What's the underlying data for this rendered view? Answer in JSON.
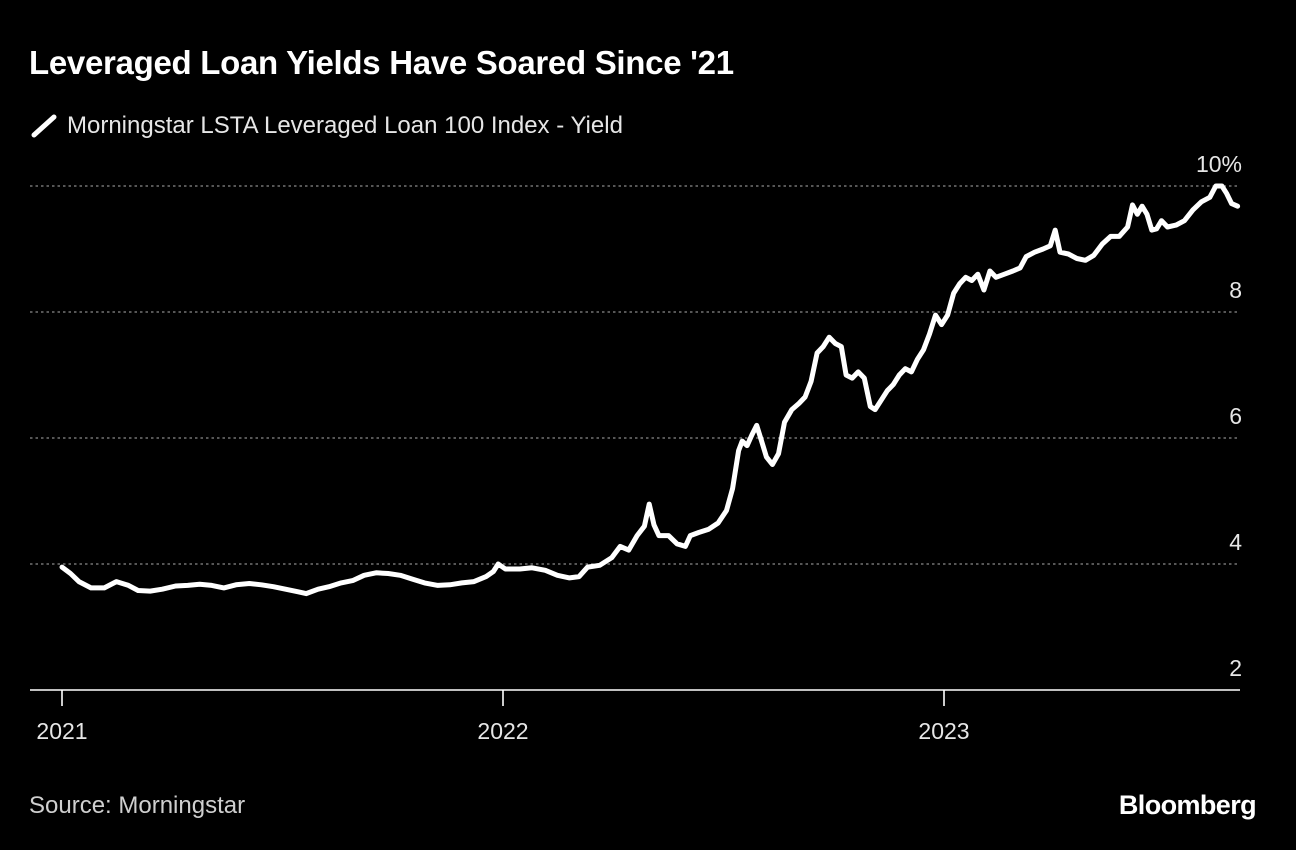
{
  "header": {
    "title": "Leveraged Loan Yields Have Soared Since '21"
  },
  "footer": {
    "source": "Source: Morningstar",
    "logo": "Bloomberg"
  },
  "colors": {
    "background": "#000000",
    "series": "#ffffff",
    "grid": "#8a8a8a",
    "axis_text": "#e6e6e6"
  },
  "chart_data": {
    "type": "line",
    "title": "Leveraged Loan Yields Have Soared Since '21",
    "legend_position": "top-left",
    "grid": true,
    "grid_style": "dotted horizontal",
    "y_axis_side": "right",
    "ylim": [
      2,
      10
    ],
    "y_ticks": [
      2,
      4,
      6,
      8,
      10
    ],
    "y_tick_labels": [
      "2",
      "4",
      "6",
      "8",
      "10%"
    ],
    "xlim": [
      "2021-01-01",
      "2023-09-30"
    ],
    "x_ticks": [
      "2021-01-01",
      "2022-01-01",
      "2023-01-01"
    ],
    "x_tick_labels": [
      "2021",
      "2022",
      "2023"
    ],
    "series": [
      {
        "name": "Morningstar LSTA Leveraged Loan 100 Index - Yield",
        "color": "#ffffff",
        "points": [
          [
            "2021-01-01",
            3.95
          ],
          [
            "2021-01-08",
            3.85
          ],
          [
            "2021-01-15",
            3.72
          ],
          [
            "2021-01-25",
            3.62
          ],
          [
            "2021-02-05",
            3.62
          ],
          [
            "2021-02-15",
            3.72
          ],
          [
            "2021-02-25",
            3.66
          ],
          [
            "2021-03-05",
            3.58
          ],
          [
            "2021-03-15",
            3.57
          ],
          [
            "2021-03-25",
            3.6
          ],
          [
            "2021-04-05",
            3.65
          ],
          [
            "2021-04-15",
            3.66
          ],
          [
            "2021-04-25",
            3.68
          ],
          [
            "2021-05-05",
            3.66
          ],
          [
            "2021-05-15",
            3.62
          ],
          [
            "2021-05-25",
            3.67
          ],
          [
            "2021-06-05",
            3.69
          ],
          [
            "2021-06-15",
            3.67
          ],
          [
            "2021-06-25",
            3.64
          ],
          [
            "2021-07-05",
            3.6
          ],
          [
            "2021-07-15",
            3.56
          ],
          [
            "2021-07-22",
            3.53
          ],
          [
            "2021-08-01",
            3.6
          ],
          [
            "2021-08-10",
            3.64
          ],
          [
            "2021-08-20",
            3.7
          ],
          [
            "2021-08-30",
            3.74
          ],
          [
            "2021-09-08",
            3.82
          ],
          [
            "2021-09-18",
            3.86
          ],
          [
            "2021-09-28",
            3.85
          ],
          [
            "2021-10-08",
            3.82
          ],
          [
            "2021-10-18",
            3.76
          ],
          [
            "2021-10-28",
            3.7
          ],
          [
            "2021-11-08",
            3.66
          ],
          [
            "2021-11-18",
            3.67
          ],
          [
            "2021-11-28",
            3.7
          ],
          [
            "2021-12-08",
            3.72
          ],
          [
            "2021-12-18",
            3.8
          ],
          [
            "2021-12-24",
            3.88
          ],
          [
            "2021-12-28",
            4.0
          ],
          [
            "2022-01-03",
            3.92
          ],
          [
            "2022-01-15",
            3.92
          ],
          [
            "2022-01-25",
            3.94
          ],
          [
            "2022-02-05",
            3.9
          ],
          [
            "2022-02-15",
            3.82
          ],
          [
            "2022-02-25",
            3.78
          ],
          [
            "2022-03-05",
            3.8
          ],
          [
            "2022-03-12",
            3.95
          ],
          [
            "2022-03-22",
            3.98
          ],
          [
            "2022-04-01",
            4.1
          ],
          [
            "2022-04-08",
            4.28
          ],
          [
            "2022-04-15",
            4.22
          ],
          [
            "2022-04-22",
            4.45
          ],
          [
            "2022-04-28",
            4.6
          ],
          [
            "2022-05-02",
            4.95
          ],
          [
            "2022-05-06",
            4.62
          ],
          [
            "2022-05-10",
            4.45
          ],
          [
            "2022-05-18",
            4.45
          ],
          [
            "2022-05-25",
            4.32
          ],
          [
            "2022-06-01",
            4.28
          ],
          [
            "2022-06-05",
            4.45
          ],
          [
            "2022-06-12",
            4.5
          ],
          [
            "2022-06-20",
            4.55
          ],
          [
            "2022-06-28",
            4.65
          ],
          [
            "2022-07-05",
            4.85
          ],
          [
            "2022-07-10",
            5.2
          ],
          [
            "2022-07-15",
            5.8
          ],
          [
            "2022-07-18",
            5.95
          ],
          [
            "2022-07-22",
            5.88
          ],
          [
            "2022-07-26",
            6.05
          ],
          [
            "2022-07-30",
            6.2
          ],
          [
            "2022-08-03",
            5.95
          ],
          [
            "2022-08-07",
            5.7
          ],
          [
            "2022-08-12",
            5.58
          ],
          [
            "2022-08-17",
            5.75
          ],
          [
            "2022-08-22",
            6.25
          ],
          [
            "2022-08-28",
            6.45
          ],
          [
            "2022-09-03",
            6.55
          ],
          [
            "2022-09-08",
            6.65
          ],
          [
            "2022-09-13",
            6.9
          ],
          [
            "2022-09-18",
            7.35
          ],
          [
            "2022-09-23",
            7.45
          ],
          [
            "2022-09-28",
            7.6
          ],
          [
            "2022-10-03",
            7.5
          ],
          [
            "2022-10-08",
            7.45
          ],
          [
            "2022-10-12",
            7.0
          ],
          [
            "2022-10-17",
            6.95
          ],
          [
            "2022-10-22",
            7.05
          ],
          [
            "2022-10-27",
            6.95
          ],
          [
            "2022-11-01",
            6.5
          ],
          [
            "2022-11-05",
            6.45
          ],
          [
            "2022-11-10",
            6.6
          ],
          [
            "2022-11-15",
            6.75
          ],
          [
            "2022-11-20",
            6.85
          ],
          [
            "2022-11-25",
            7.0
          ],
          [
            "2022-11-30",
            7.1
          ],
          [
            "2022-12-05",
            7.05
          ],
          [
            "2022-12-10",
            7.25
          ],
          [
            "2022-12-15",
            7.4
          ],
          [
            "2022-12-20",
            7.65
          ],
          [
            "2022-12-25",
            7.95
          ],
          [
            "2022-12-30",
            7.8
          ],
          [
            "2023-01-04",
            7.95
          ],
          [
            "2023-01-09",
            8.3
          ],
          [
            "2023-01-14",
            8.45
          ],
          [
            "2023-01-19",
            8.55
          ],
          [
            "2023-01-24",
            8.5
          ],
          [
            "2023-01-29",
            8.6
          ],
          [
            "2023-02-03",
            8.35
          ],
          [
            "2023-02-08",
            8.65
          ],
          [
            "2023-02-13",
            8.55
          ],
          [
            "2023-02-20",
            8.6
          ],
          [
            "2023-02-27",
            8.65
          ],
          [
            "2023-03-05",
            8.7
          ],
          [
            "2023-03-10",
            8.88
          ],
          [
            "2023-03-17",
            8.95
          ],
          [
            "2023-03-24",
            9.0
          ],
          [
            "2023-03-30",
            9.05
          ],
          [
            "2023-04-03",
            9.3
          ],
          [
            "2023-04-07",
            8.95
          ],
          [
            "2023-04-14",
            8.92
          ],
          [
            "2023-04-21",
            8.85
          ],
          [
            "2023-04-28",
            8.82
          ],
          [
            "2023-05-05",
            8.9
          ],
          [
            "2023-05-12",
            9.08
          ],
          [
            "2023-05-19",
            9.2
          ],
          [
            "2023-05-26",
            9.2
          ],
          [
            "2023-06-02",
            9.35
          ],
          [
            "2023-06-06",
            9.7
          ],
          [
            "2023-06-10",
            9.55
          ],
          [
            "2023-06-14",
            9.68
          ],
          [
            "2023-06-18",
            9.55
          ],
          [
            "2023-06-22",
            9.3
          ],
          [
            "2023-06-26",
            9.32
          ],
          [
            "2023-06-30",
            9.45
          ],
          [
            "2023-07-05",
            9.35
          ],
          [
            "2023-07-12",
            9.38
          ],
          [
            "2023-07-19",
            9.45
          ],
          [
            "2023-07-26",
            9.62
          ],
          [
            "2023-08-02",
            9.75
          ],
          [
            "2023-08-09",
            9.82
          ],
          [
            "2023-08-14",
            10.0
          ],
          [
            "2023-08-19",
            10.0
          ],
          [
            "2023-08-23",
            9.88
          ],
          [
            "2023-08-27",
            9.72
          ],
          [
            "2023-09-01",
            9.68
          ]
        ]
      }
    ]
  }
}
